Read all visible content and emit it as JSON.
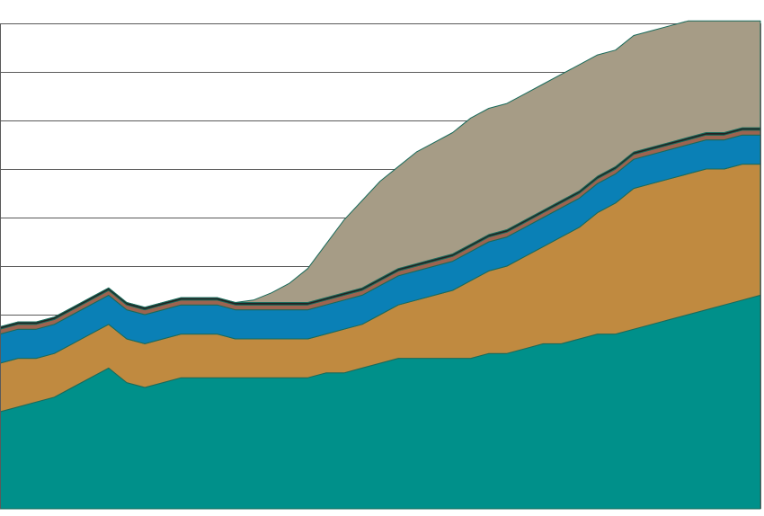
{
  "chart_data": {
    "type": "area",
    "stacked": true,
    "title": "",
    "xlabel": "",
    "ylabel": "",
    "x": [
      0,
      1,
      2,
      3,
      4,
      5,
      6,
      7,
      8,
      9,
      10,
      11,
      12,
      13,
      14,
      15,
      16,
      17,
      18,
      19,
      20,
      21,
      22,
      23,
      24,
      25,
      26,
      27,
      28,
      29,
      30,
      31,
      32,
      33,
      34,
      35,
      36,
      37,
      38,
      39,
      40,
      41,
      42
    ],
    "xlim": [
      0,
      42
    ],
    "ylim": [
      0,
      10
    ],
    "grid": true,
    "legend": false,
    "colors": {
      "background": "#ffffff",
      "grid": "#5a5a5a",
      "outline": "#1a6a5a"
    },
    "series": [
      {
        "color": "#00908a",
        "values": [
          2.0,
          2.1,
          2.2,
          2.3,
          2.5,
          2.7,
          2.9,
          2.6,
          2.5,
          2.6,
          2.7,
          2.7,
          2.7,
          2.7,
          2.7,
          2.7,
          2.7,
          2.7,
          2.8,
          2.8,
          2.9,
          3.0,
          3.1,
          3.1,
          3.1,
          3.1,
          3.1,
          3.2,
          3.2,
          3.3,
          3.4,
          3.4,
          3.5,
          3.6,
          3.6,
          3.7,
          3.8,
          3.9,
          4.0,
          4.1,
          4.2,
          4.3,
          4.4
        ]
      },
      {
        "color": "#c08a40",
        "values": [
          1.0,
          1.0,
          0.9,
          0.9,
          0.9,
          0.9,
          0.9,
          0.9,
          0.9,
          0.9,
          0.9,
          0.9,
          0.9,
          0.8,
          0.8,
          0.8,
          0.8,
          0.8,
          0.8,
          0.9,
          0.9,
          1.0,
          1.1,
          1.2,
          1.3,
          1.4,
          1.6,
          1.7,
          1.8,
          1.9,
          2.0,
          2.2,
          2.3,
          2.5,
          2.7,
          2.9,
          2.9,
          2.9,
          2.9,
          2.9,
          2.8,
          2.8,
          2.7
        ]
      },
      {
        "color": "#0a80b6",
        "values": [
          0.6,
          0.6,
          0.6,
          0.6,
          0.6,
          0.6,
          0.6,
          0.6,
          0.6,
          0.6,
          0.6,
          0.6,
          0.6,
          0.6,
          0.6,
          0.6,
          0.6,
          0.6,
          0.6,
          0.6,
          0.6,
          0.6,
          0.6,
          0.6,
          0.6,
          0.6,
          0.6,
          0.6,
          0.6,
          0.6,
          0.6,
          0.6,
          0.6,
          0.6,
          0.6,
          0.6,
          0.6,
          0.6,
          0.6,
          0.6,
          0.6,
          0.6,
          0.6
        ]
      },
      {
        "color": "#9c6450",
        "values": [
          0.1,
          0.1,
          0.1,
          0.1,
          0.1,
          0.1,
          0.1,
          0.1,
          0.1,
          0.1,
          0.1,
          0.1,
          0.1,
          0.1,
          0.1,
          0.1,
          0.1,
          0.1,
          0.1,
          0.1,
          0.1,
          0.1,
          0.1,
          0.1,
          0.1,
          0.1,
          0.1,
          0.1,
          0.1,
          0.1,
          0.1,
          0.1,
          0.1,
          0.1,
          0.1,
          0.1,
          0.1,
          0.1,
          0.1,
          0.1,
          0.1,
          0.1,
          0.1
        ]
      },
      {
        "color": "#222222",
        "values": [
          0.05,
          0.05,
          0.05,
          0.05,
          0.05,
          0.05,
          0.05,
          0.05,
          0.05,
          0.05,
          0.05,
          0.05,
          0.05,
          0.05,
          0.05,
          0.05,
          0.05,
          0.05,
          0.05,
          0.05,
          0.05,
          0.05,
          0.05,
          0.05,
          0.05,
          0.05,
          0.05,
          0.05,
          0.05,
          0.05,
          0.05,
          0.05,
          0.05,
          0.05,
          0.05,
          0.05,
          0.05,
          0.05,
          0.05,
          0.05,
          0.05,
          0.05,
          0.05
        ]
      },
      {
        "color": "#a69c86",
        "values": [
          0,
          0,
          0,
          0,
          0,
          0,
          0,
          0,
          0,
          0,
          0,
          0,
          0,
          0,
          0.05,
          0.2,
          0.4,
          0.7,
          1.1,
          1.5,
          1.8,
          2.0,
          2.1,
          2.3,
          2.4,
          2.5,
          2.6,
          2.6,
          2.6,
          2.6,
          2.6,
          2.6,
          2.6,
          2.5,
          2.4,
          2.4,
          2.4,
          2.4,
          2.4,
          2.3,
          2.3,
          2.2,
          2.2
        ]
      }
    ]
  }
}
